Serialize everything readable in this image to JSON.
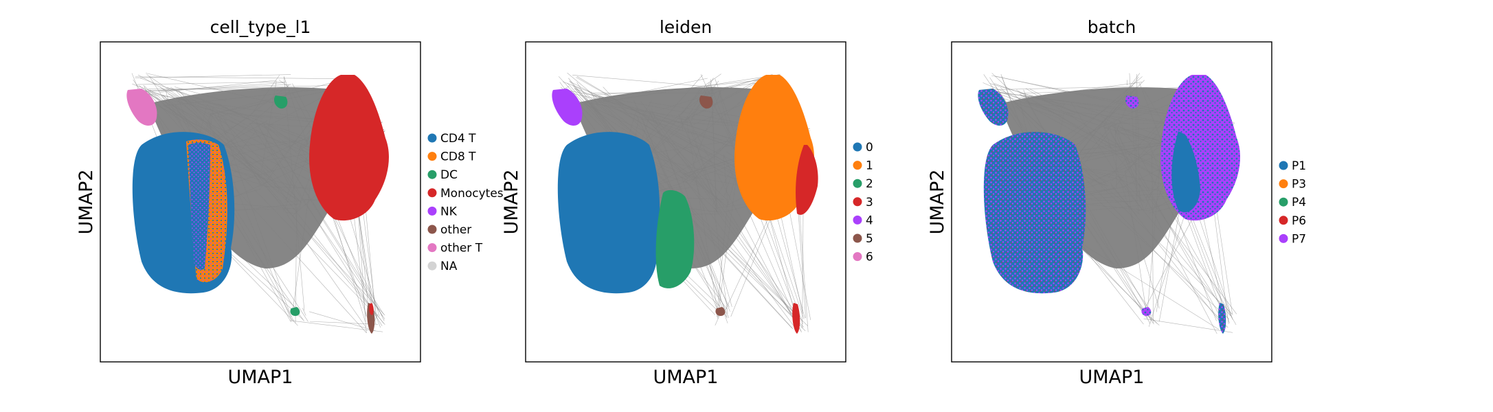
{
  "colors": {
    "edges": "#808080",
    "frame": "#000000",
    "c_blue": "#1f77b4",
    "c_orange": "#ff7f0e",
    "c_green": "#279e68",
    "c_red": "#d62728",
    "c_purple": "#aa40fc",
    "c_brown": "#8c564b",
    "c_pink": "#e377c2",
    "c_na": "#d3d3d3"
  },
  "chart_data": [
    {
      "type": "scatter",
      "title": "cell_type_l1",
      "xlabel": "UMAP1",
      "ylabel": "UMAP2",
      "grid": false,
      "legend_placement": "right",
      "legend": [
        {
          "label": "CD4 T",
          "color": "#1f77b4"
        },
        {
          "label": "CD8 T",
          "color": "#ff7f0e"
        },
        {
          "label": "DC",
          "color": "#279e68"
        },
        {
          "label": "Monocytes",
          "color": "#d62728"
        },
        {
          "label": "NK",
          "color": "#aa40fc"
        },
        {
          "label": "other",
          "color": "#8c564b"
        },
        {
          "label": "other T",
          "color": "#e377c2"
        },
        {
          "label": "NA",
          "color": "#d3d3d3"
        }
      ]
    },
    {
      "type": "scatter",
      "title": "leiden",
      "xlabel": "UMAP1",
      "ylabel": "UMAP2",
      "grid": false,
      "legend_placement": "right",
      "legend": [
        {
          "label": "0",
          "color": "#1f77b4"
        },
        {
          "label": "1",
          "color": "#ff7f0e"
        },
        {
          "label": "2",
          "color": "#279e68"
        },
        {
          "label": "3",
          "color": "#d62728"
        },
        {
          "label": "4",
          "color": "#aa40fc"
        },
        {
          "label": "5",
          "color": "#8c564b"
        },
        {
          "label": "6",
          "color": "#e377c2"
        }
      ]
    },
    {
      "type": "scatter",
      "title": "batch",
      "xlabel": "UMAP1",
      "ylabel": "UMAP2",
      "grid": false,
      "legend_placement": "right",
      "legend": [
        {
          "label": "P1",
          "color": "#1f77b4"
        },
        {
          "label": "P3",
          "color": "#ff7f0e"
        },
        {
          "label": "P4",
          "color": "#279e68"
        },
        {
          "label": "P6",
          "color": "#d62728"
        },
        {
          "label": "P7",
          "color": "#aa40fc"
        }
      ]
    }
  ]
}
